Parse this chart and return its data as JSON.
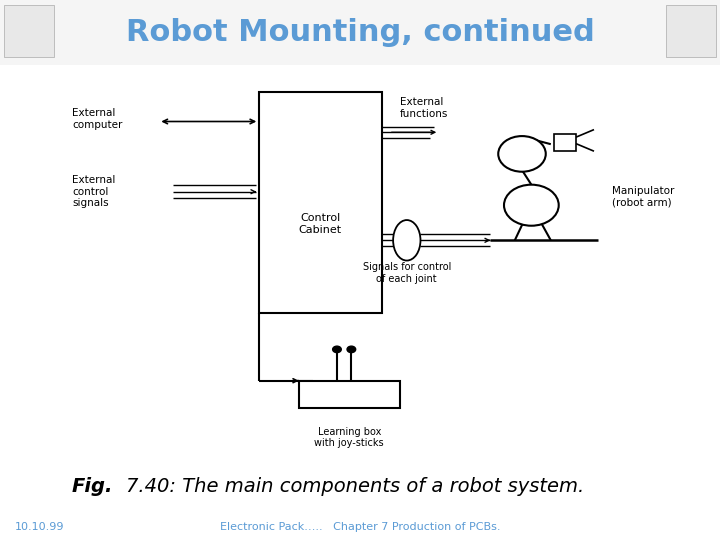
{
  "title": "Robot Mounting, continued",
  "title_color": "#5b9bd5",
  "title_fontsize": 22,
  "fig_bg": "#f0f0f0",
  "slide_bg": "#ffffff",
  "caption_bold": "Fig.",
  "caption_rest": " 7.40: The main components of a robot system.",
  "caption_fontsize": 14,
  "footer_left": "10.10.99",
  "footer_center": "Electronic Pack…..   Chapter 7 Production of PCBs.",
  "footer_color": "#5b9bd5",
  "footer_fontsize": 8,
  "diagram_border_color": "#cccccc"
}
